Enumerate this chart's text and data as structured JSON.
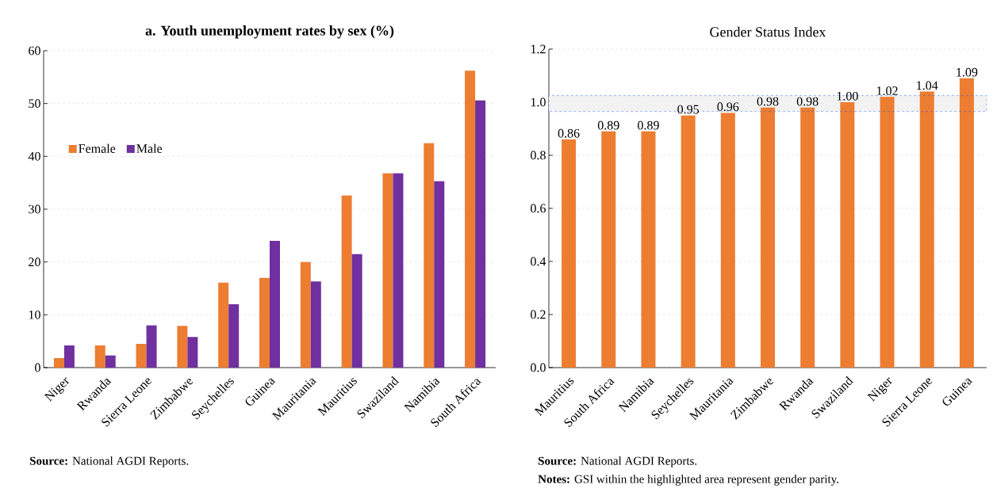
{
  "chart_data": [
    {
      "type": "bar",
      "title": "a. Youth unemployment  rates by sex (%)",
      "categories": [
        "Niger",
        "Rwanda",
        "Sierra Leone",
        "Zimbabwe",
        "Seychelles",
        "Guinea",
        "Mauritania",
        "Mauritius",
        "Swaziland",
        "Namibia",
        "South Africa"
      ],
      "series": [
        {
          "name": "Female",
          "color": "#ed7d31",
          "values": [
            1.8,
            4.2,
            4.5,
            7.9,
            16.1,
            17.0,
            20.0,
            32.6,
            36.8,
            42.5,
            56.2
          ]
        },
        {
          "name": "Male",
          "color": "#7030a0",
          "values": [
            4.2,
            2.3,
            8.0,
            5.8,
            12.0,
            24.0,
            16.3,
            21.5,
            36.8,
            35.3,
            50.6
          ]
        }
      ],
      "ylim": [
        0,
        60
      ],
      "yticks": [
        0,
        10,
        20,
        30,
        40,
        50,
        60
      ],
      "grid": "y",
      "legend": "left",
      "annotations": [
        "**Source:** National  AGDI Reports."
      ]
    },
    {
      "type": "bar",
      "title": "Gender Status Index",
      "categories": [
        "Mauritius",
        "South Africa",
        "Namibia",
        "Seychelles",
        "Mauritania",
        "Zimbabwe",
        "Rwanda",
        "Swaziland",
        "Niger",
        "Sierra Leone",
        "Guinea"
      ],
      "values": [
        0.86,
        0.89,
        0.89,
        0.95,
        0.96,
        0.98,
        0.98,
        1.0,
        1.02,
        1.04,
        1.09
      ],
      "value_labels": [
        "0.86",
        "0.89",
        "0.89",
        "0.95",
        "0.96",
        "0.98",
        "0.98",
        "1.00",
        "1.02",
        "1.04",
        "1.09"
      ],
      "color": "#ed7d31",
      "ylim": [
        0,
        1.2
      ],
      "yticks": [
        {
          "value": 0,
          "label": "0.0"
        },
        0.2,
        0.4,
        0.6,
        0.8,
        {
          "value": 1.0,
          "label": "1.0"
        },
        1.2
      ],
      "grid": "y",
      "bands": [
        {
          "axis": "y",
          "from": 0.965,
          "to": 1.025,
          "color": "#f2f2f2"
        }
      ],
      "annotations": [
        "**Source:** National  AGDI Reports.",
        "**Notes:** GSI within  the highlighted  area represent gender parity."
      ]
    }
  ]
}
